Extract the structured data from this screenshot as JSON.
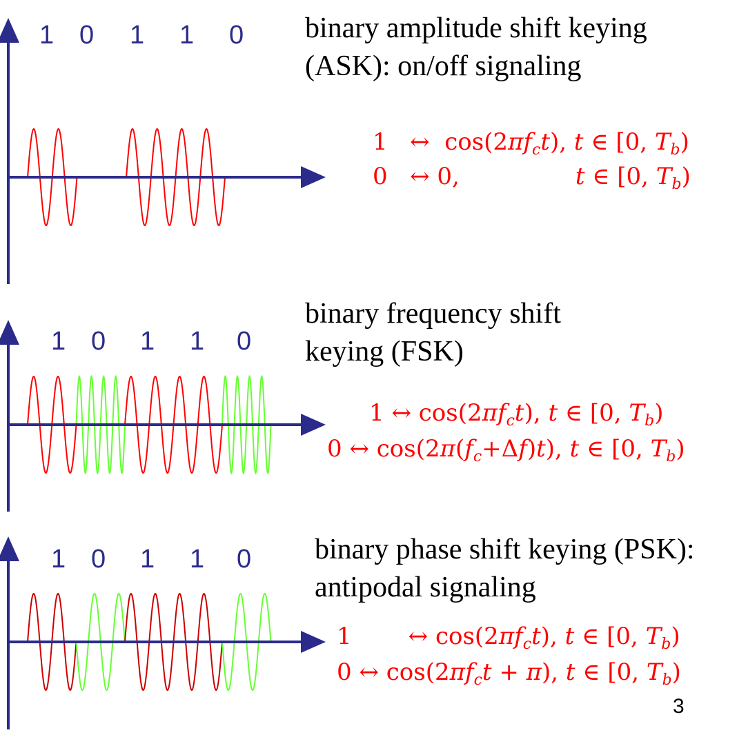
{
  "colors": {
    "axis": "#2b2b8c",
    "bits": "#2b2b8c",
    "one_wave": "#ff0000",
    "one_wave_psk": "#cc0000",
    "zero_wave": "#66ff33",
    "equation": "#ff0000"
  },
  "slide_number": "3",
  "panels": [
    {
      "id": "ask",
      "bits": [
        "1",
        "0",
        "1",
        "1",
        "0"
      ],
      "title_lines": [
        "binary amplitude shift keying",
        "(ASK): on/off signaling"
      ],
      "equations": [
        {
          "bit": "1",
          "arrow": "↔",
          "expr": "cos(2πf<sub>c</sub>t), t ∈ [0, T<sub>b</sub>)",
          "label": "1 ↔ cos(2πfct), t ∈ [0, Tb)"
        },
        {
          "bit": "0",
          "arrow": "↔",
          "expr": "0,&nbsp;&nbsp;&nbsp;&nbsp;&nbsp;&nbsp;&nbsp;&nbsp;&nbsp;&nbsp;&nbsp;&nbsp;&nbsp;t ∈ [0, T<sub>b</sub>)",
          "label": "0 ↔ 0, t ∈ [0, Tb)"
        }
      ]
    },
    {
      "id": "fsk",
      "bits": [
        "1",
        "0",
        "1",
        "1",
        "0"
      ],
      "title_lines": [
        "binary frequency shift",
        "keying (FSK)"
      ],
      "equations": [
        {
          "bit": "1",
          "arrow": "↔",
          "label": "1 ↔ cos(2πfct), t ∈ [0, Tb)"
        },
        {
          "bit": "0",
          "arrow": "↔",
          "label": "0 ↔ cos(2π(fc+Δf)t), t ∈ [0, Tb)"
        }
      ]
    },
    {
      "id": "psk",
      "bits": [
        "1",
        "0",
        "1",
        "1",
        "0"
      ],
      "title_lines": [
        "binary phase shift keying (PSK):",
        "antipodal signaling"
      ],
      "equations": [
        {
          "bit": "1",
          "arrow": "↔",
          "label": "1 ↔ cos(2πfct), t ∈ [0, Tb)"
        },
        {
          "bit": "0",
          "arrow": "↔",
          "label": "0 ↔ cos(2πfct + π), t ∈ [0, Tb)"
        }
      ]
    }
  ]
}
